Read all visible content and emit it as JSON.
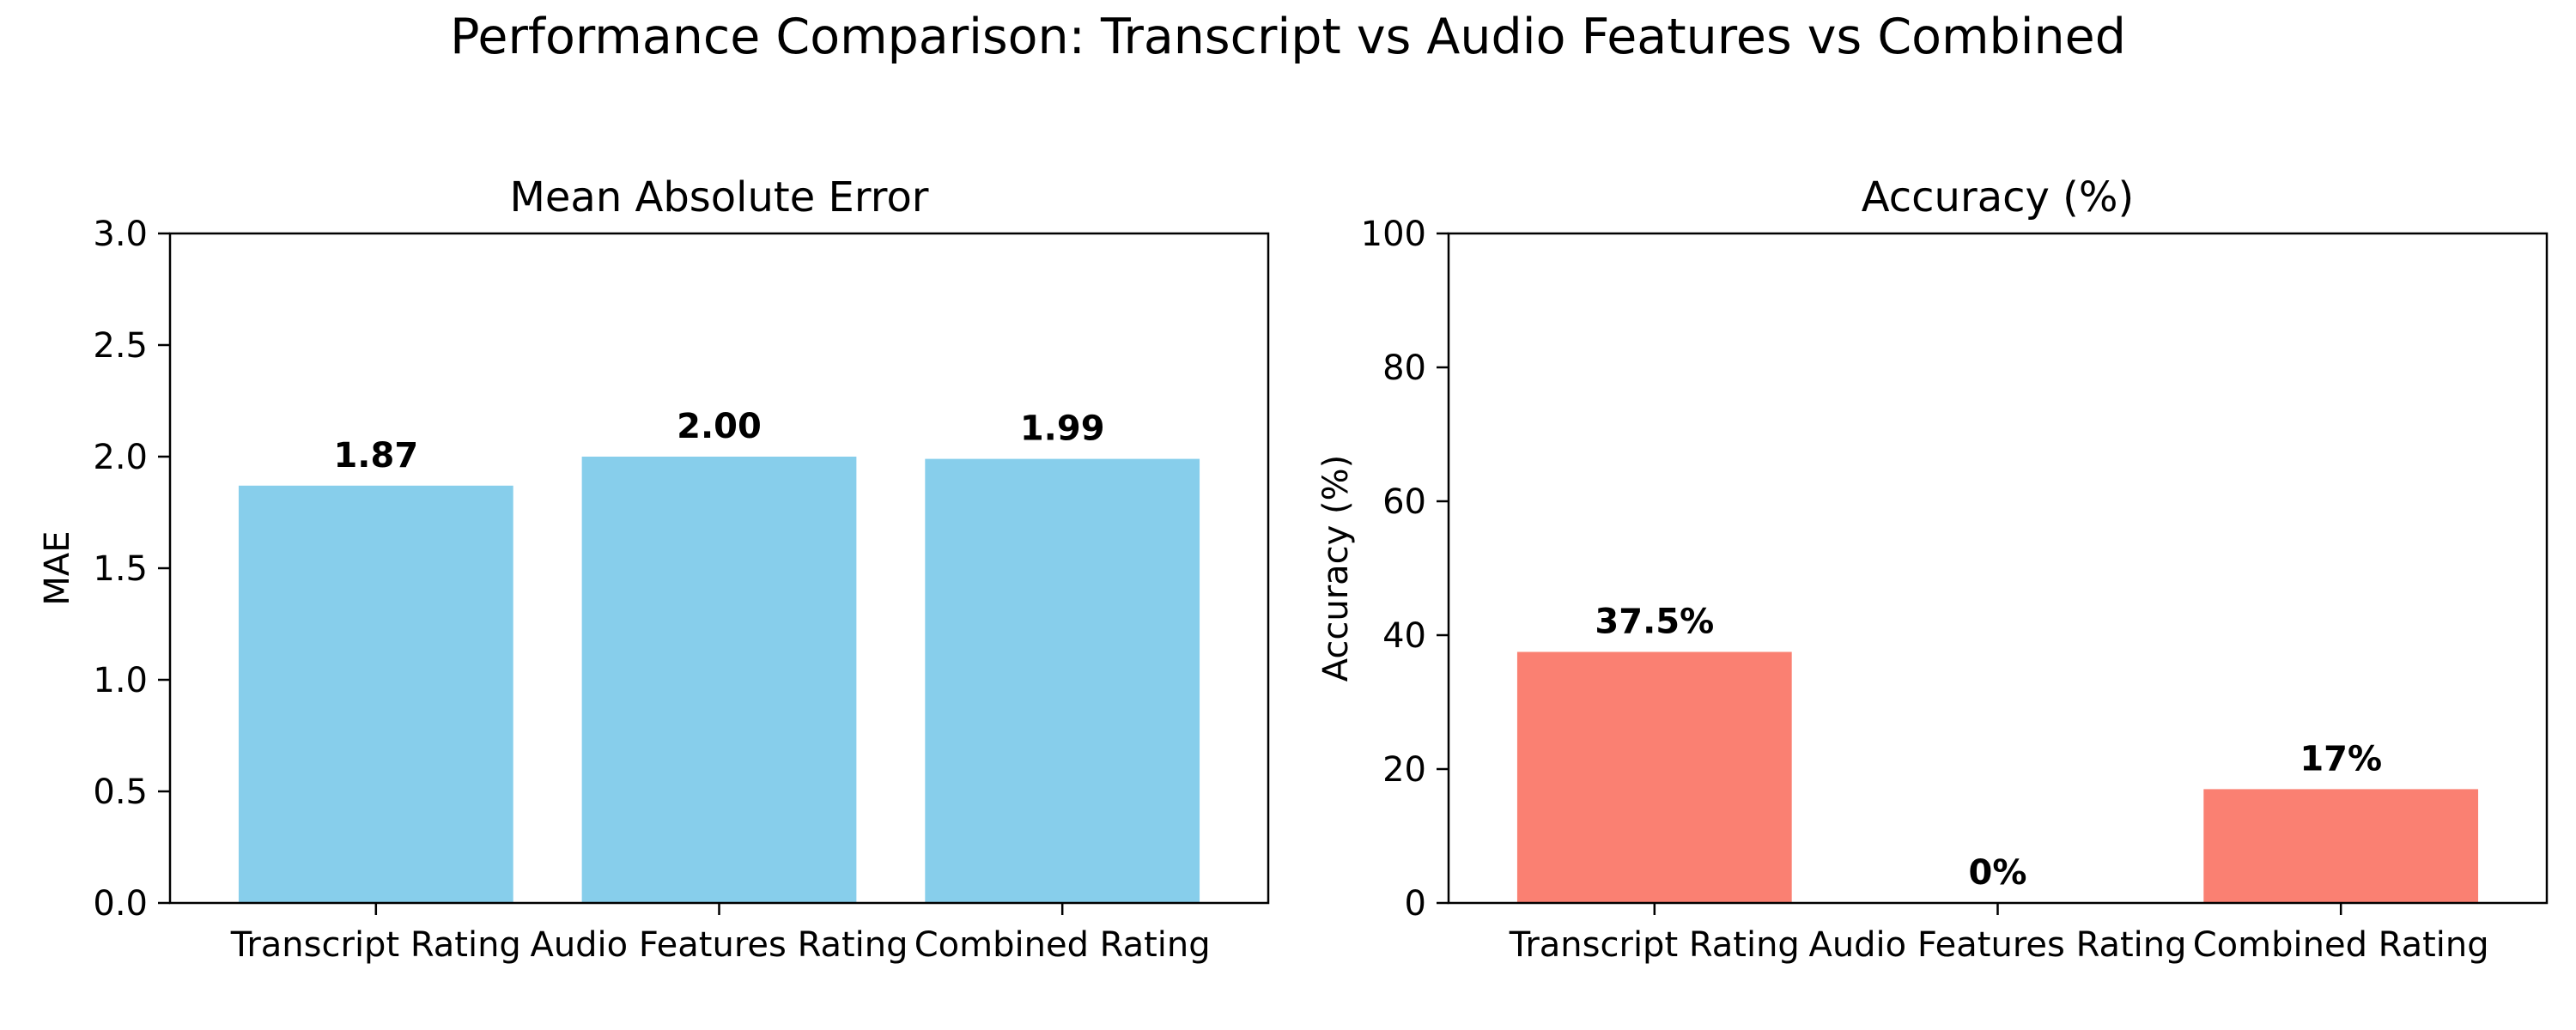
{
  "figure_title": "Performance Comparison: Transcript vs Audio Features vs Combined",
  "chart_data": [
    {
      "type": "bar",
      "title": "Mean Absolute Error",
      "xlabel": "",
      "ylabel": "MAE",
      "categories": [
        "Transcript Rating",
        "Audio Features Rating",
        "Combined Rating"
      ],
      "values": [
        1.87,
        2.0,
        1.99
      ],
      "data_labels": [
        "1.87",
        "2.00",
        "1.99"
      ],
      "ylim": [
        0,
        3.0
      ],
      "yticks": [
        0.0,
        0.5,
        1.0,
        1.5,
        2.0,
        2.5,
        3.0
      ],
      "ytick_labels": [
        "0.0",
        "0.5",
        "1.0",
        "1.5",
        "2.0",
        "2.5",
        "3.0"
      ],
      "bar_color": "#87CEEB",
      "grid": false,
      "legend": "none"
    },
    {
      "type": "bar",
      "title": "Accuracy (%)",
      "xlabel": "",
      "ylabel": "Accuracy (%)",
      "categories": [
        "Transcript Rating",
        "Audio Features Rating",
        "Combined Rating"
      ],
      "values": [
        37.5,
        0,
        17
      ],
      "data_labels": [
        "37.5%",
        "0%",
        "17%"
      ],
      "ylim": [
        0,
        100
      ],
      "yticks": [
        0,
        20,
        40,
        60,
        80,
        100
      ],
      "ytick_labels": [
        "0",
        "20",
        "40",
        "60",
        "80",
        "100"
      ],
      "bar_color": "#FA8072",
      "grid": false,
      "legend": "none"
    }
  ]
}
